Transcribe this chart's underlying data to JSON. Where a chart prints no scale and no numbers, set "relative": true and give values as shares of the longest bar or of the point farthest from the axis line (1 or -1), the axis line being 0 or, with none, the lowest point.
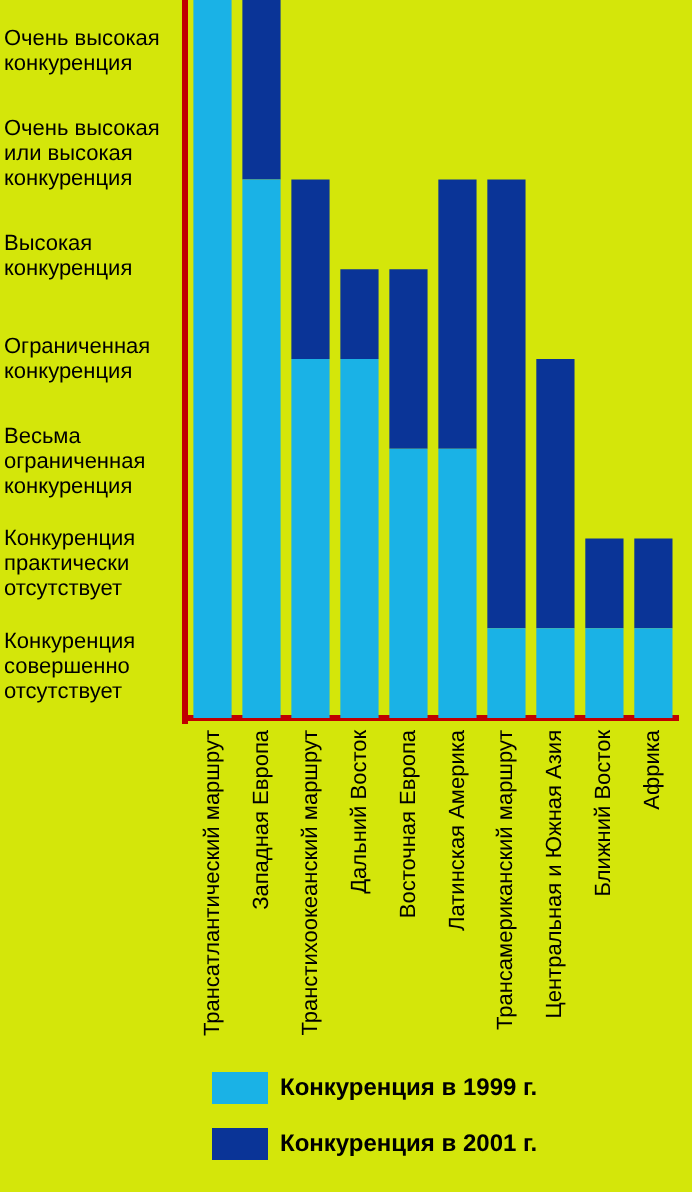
{
  "chart_data": {
    "type": "bar",
    "relative": true,
    "stacked": true,
    "categories": [
      "Трансатлантический маршрут",
      "Западная Европа",
      "Транстихоокеанский маршрут",
      "Дальний Восток",
      "Восточная Европа",
      "Латинская Америка",
      "Трансамериканский маршрут",
      "Центральная и Южная Азия",
      "Ближний Восток",
      "Африка"
    ],
    "series": [
      {
        "name": "Конкуренция в 1999 г.",
        "color": "#1ab2e6",
        "values": [
          1,
          0.75,
          0.5,
          0.5,
          0.375,
          0.375,
          0.125,
          0.125,
          0.125,
          0.125
        ]
      },
      {
        "name": "Конкуренция в 2001 г.",
        "color": "#0a3497",
        "values": [
          0,
          0.25,
          0.25,
          0.125,
          0.25,
          0.375,
          0.625,
          0.375,
          0.125,
          0.125
        ]
      }
    ],
    "annotations": [
      "Очень высокая конкуренция",
      "Очень высокая или высокая конкуренция",
      "Высокая конкуренция",
      "Ограниченная конкуренция",
      "Весьма ограниченная конкуренция",
      "Конкуренция практически отсутствует",
      "Конкуренция совершенно отсутствует"
    ],
    "grid": false,
    "legend": "bottom left"
  }
}
